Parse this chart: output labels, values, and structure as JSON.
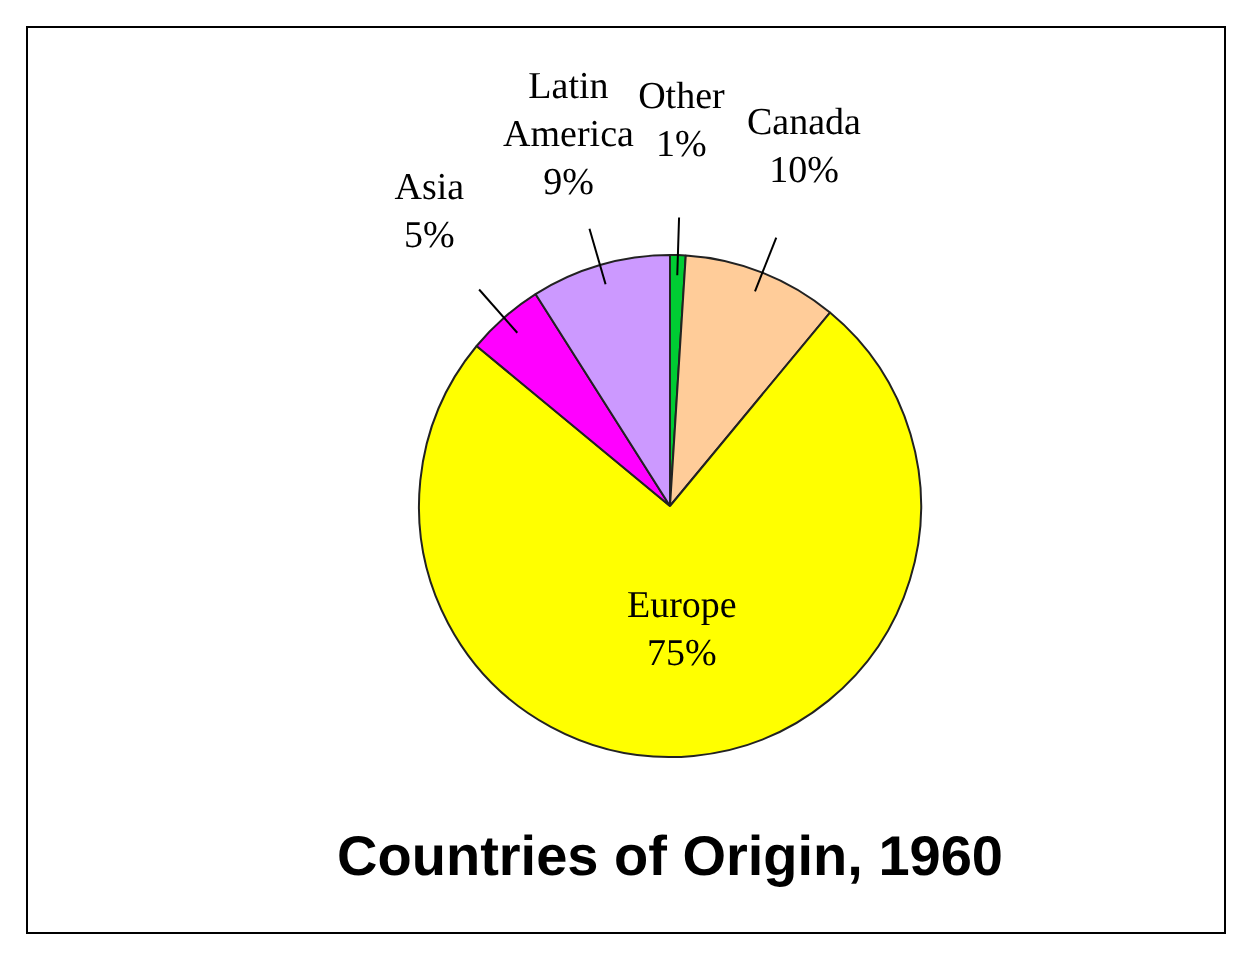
{
  "chart_data": {
    "type": "pie",
    "title": "Countries of Origin, 1960",
    "categories": [
      "Other",
      "Canada",
      "Europe",
      "Asia",
      "Latin America"
    ],
    "values": [
      1,
      10,
      75,
      5,
      9
    ],
    "value_labels": [
      "1%",
      "10%",
      "75%",
      "5%",
      "9%"
    ],
    "colors": [
      "#00cc33",
      "#ffcc99",
      "#ffff00",
      "#ff00ff",
      "#cc99ff"
    ],
    "legend": false
  }
}
